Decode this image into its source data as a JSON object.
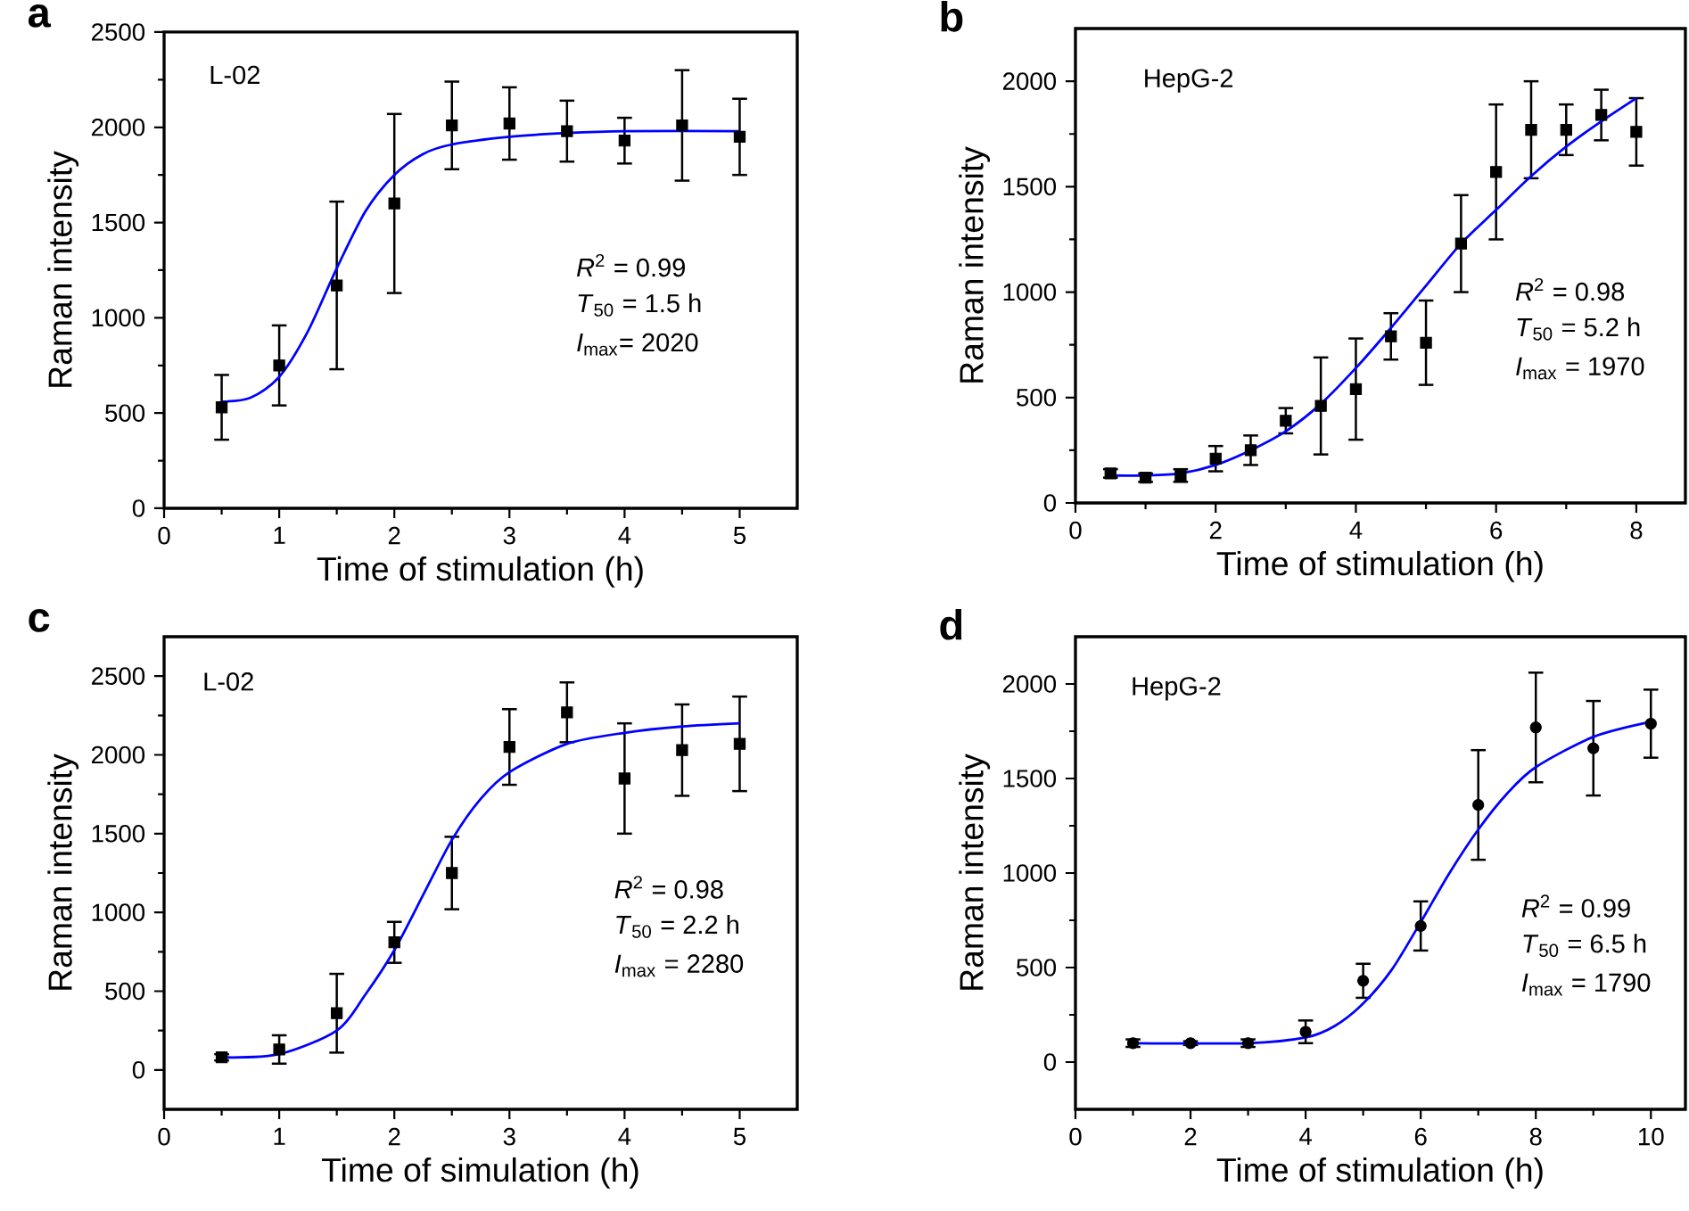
{
  "chart_data": [
    {
      "type": "scatter",
      "title": "a",
      "xlabel": "Time of stimulation (h)",
      "ylabel": "Raman intensity",
      "xlim": [
        0,
        5.5
      ],
      "ylim": [
        0,
        2500
      ],
      "xticks": [
        0,
        1,
        2,
        3,
        4,
        5
      ],
      "yticks": [
        0,
        500,
        1000,
        1500,
        2000,
        2500
      ],
      "annotations": [
        "L-02",
        "*R*$^{2}$ = 0.99",
        "*T*$_{50}$ = 1.5 h",
        "*I*$_{max}$= 2020"
      ],
      "series": [
        {
          "marker": "square",
          "color": "#000000",
          "x": [
            0.5,
            1,
            1.5,
            2,
            2.5,
            3,
            3.5,
            4,
            4.5,
            5
          ],
          "values": [
            530,
            750,
            1170,
            1600,
            2010,
            2020,
            1980,
            1930,
            2010,
            1950
          ],
          "errors": [
            170,
            210,
            440,
            470,
            230,
            190,
            160,
            120,
            290,
            200
          ]
        },
        {
          "type": "line",
          "marker": "none",
          "color": "#0000ff",
          "x": [
            0.5,
            0.75,
            1,
            1.25,
            1.5,
            1.75,
            2,
            2.25,
            2.5,
            3,
            3.5,
            4,
            5
          ],
          "values": [
            560,
            580,
            690,
            930,
            1260,
            1560,
            1750,
            1860,
            1910,
            1950,
            1970,
            1980,
            1980
          ]
        }
      ]
    },
    {
      "type": "scatter",
      "title": "b",
      "xlabel": "Time of stimulation (h)",
      "ylabel": "Raman intensity",
      "xlim": [
        0,
        8.7
      ],
      "ylim": [
        0,
        2250
      ],
      "xticks": [
        0,
        2,
        4,
        6,
        8
      ],
      "yticks": [
        0,
        500,
        1000,
        1500,
        2000
      ],
      "annotations": [
        "HepG-2",
        "*R*$^{2}$ = 0.98",
        "*T*$_{50}$ = 5.2 h",
        "*I*$_{max}$ = 1970"
      ],
      "series": [
        {
          "marker": "square",
          "color": "#000000",
          "x": [
            0.5,
            1,
            1.5,
            2,
            2.5,
            3,
            3.5,
            4,
            4.5,
            5,
            5.5,
            6,
            6.5,
            7,
            7.5,
            8
          ],
          "values": [
            140,
            120,
            130,
            210,
            250,
            390,
            460,
            540,
            790,
            760,
            1230,
            1570,
            1770,
            1770,
            1840,
            1760
          ],
          "errors": [
            20,
            20,
            30,
            60,
            70,
            60,
            230,
            240,
            110,
            200,
            230,
            320,
            230,
            120,
            120,
            160
          ]
        },
        {
          "type": "line",
          "marker": "none",
          "color": "#0000ff",
          "x": [
            0.5,
            1,
            1.5,
            2,
            2.5,
            3,
            3.5,
            4,
            4.5,
            5,
            5.5,
            6,
            6.5,
            7,
            7.5,
            8
          ],
          "values": [
            130,
            130,
            140,
            180,
            250,
            340,
            470,
            640,
            830,
            1030,
            1230,
            1390,
            1550,
            1690,
            1810,
            1920
          ]
        }
      ]
    },
    {
      "type": "scatter",
      "title": "c",
      "xlabel": "Time of simulation (h)",
      "ylabel": "Raman intensity",
      "xlim": [
        0,
        5.5
      ],
      "ylim": [
        -250,
        2750
      ],
      "xticks": [
        0,
        1,
        2,
        3,
        4,
        5
      ],
      "yticks": [
        0,
        500,
        1000,
        1500,
        2000,
        2500
      ],
      "annotations": [
        "L-02",
        "*R*$^{2}$  = 0.98",
        "*T*$_{50}$  = 2.2 h",
        "*I*$_{max}$ = 2280"
      ],
      "series": [
        {
          "marker": "square",
          "color": "#000000",
          "x": [
            0.5,
            1,
            1.5,
            2,
            2.5,
            3,
            3.5,
            4,
            4.5,
            5
          ],
          "values": [
            80,
            130,
            360,
            810,
            1250,
            2050,
            2270,
            1850,
            2030,
            2070
          ],
          "errors": [
            20,
            90,
            250,
            130,
            230,
            240,
            190,
            350,
            290,
            300
          ]
        },
        {
          "type": "line",
          "marker": "none",
          "color": "#0000ff",
          "x": [
            0.5,
            1,
            1.5,
            1.75,
            2,
            2.25,
            2.5,
            2.75,
            3,
            3.5,
            4,
            4.5,
            5
          ],
          "values": [
            80,
            100,
            250,
            480,
            760,
            1110,
            1460,
            1720,
            1890,
            2070,
            2140,
            2180,
            2200
          ]
        }
      ]
    },
    {
      "type": "scatter",
      "title": "d",
      "xlabel": "Time of stimulation (h)",
      "ylabel": "Raman intensity",
      "xlim": [
        0,
        10.6
      ],
      "ylim": [
        -250,
        2250
      ],
      "xticks": [
        0,
        2,
        4,
        6,
        8,
        10
      ],
      "yticks": [
        0,
        500,
        1000,
        1500,
        2000
      ],
      "annotations": [
        "HepG-2",
        "*R*$^{2}$ = 0.99",
        "*T*$_{50}$  = 6.5 h",
        "*I*$_{max}$ = 1790"
      ],
      "series": [
        {
          "marker": "circle",
          "color": "#000000",
          "x": [
            1,
            2,
            3,
            4,
            5,
            6,
            7,
            8,
            9,
            10
          ],
          "values": [
            100,
            100,
            100,
            160,
            430,
            720,
            1360,
            1770,
            1660,
            1790
          ],
          "errors": [
            20,
            10,
            20,
            60,
            90,
            130,
            290,
            290,
            250,
            180
          ]
        },
        {
          "type": "line",
          "marker": "none",
          "color": "#0000ff",
          "x": [
            1,
            3,
            4,
            4.5,
            5,
            5.5,
            6,
            6.5,
            7,
            7.5,
            8,
            9,
            10
          ],
          "values": [
            100,
            100,
            130,
            190,
            310,
            490,
            740,
            1000,
            1230,
            1420,
            1560,
            1720,
            1800
          ]
        }
      ]
    }
  ]
}
